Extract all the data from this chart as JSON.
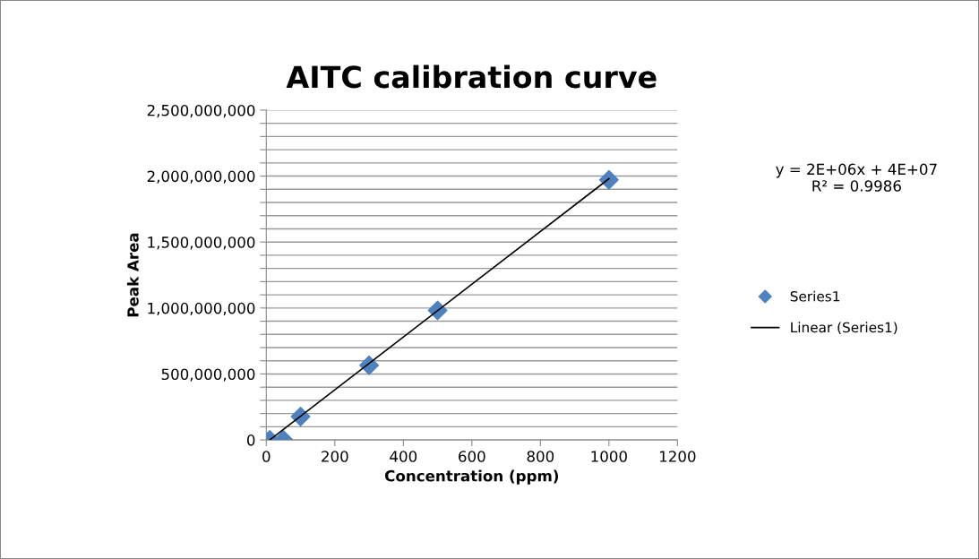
{
  "chart_data": {
    "type": "scatter",
    "title": "AITC calibration curve",
    "xlabel": "Concentration (ppm)",
    "ylabel": "Peak Area",
    "annotations": [
      "y = 2E+06x + 4E+07\nR² = 0.9986"
    ],
    "series": [
      {
        "name": "Series1",
        "color": "#4f81bd",
        "marker": "diamond",
        "x": [
          10,
          50,
          100,
          300,
          500,
          1000
        ],
        "values": [
          0,
          0,
          177000000,
          566000000,
          982000000,
          1971000000
        ]
      },
      {
        "name": "Linear (Series1)",
        "type": "line",
        "color": "#000000",
        "line_style": "solid",
        "marker": "none",
        "x": [
          10,
          1000
        ],
        "values": [
          0,
          1980000000
        ]
      }
    ],
    "xlim": [
      0,
      1200
    ],
    "xticks": [
      0,
      200,
      400,
      600,
      800,
      1000,
      1200
    ],
    "ylim": [
      0,
      2500000000
    ],
    "yticks": [
      {
        "value": 0,
        "label": "0"
      },
      {
        "value": 100000000,
        "label": null
      },
      {
        "value": 200000000,
        "label": null
      },
      {
        "value": 300000000,
        "label": null
      },
      {
        "value": 400000000,
        "label": null
      },
      {
        "value": 500000000,
        "label": "500,000,000"
      },
      {
        "value": 600000000,
        "label": null
      },
      {
        "value": 700000000,
        "label": null
      },
      {
        "value": 800000000,
        "label": null
      },
      {
        "value": 900000000,
        "label": null
      },
      {
        "value": 1000000000,
        "label": "1,000,000,000"
      },
      {
        "value": 1100000000,
        "label": null
      },
      {
        "value": 1200000000,
        "label": null
      },
      {
        "value": 1300000000,
        "label": null
      },
      {
        "value": 1400000000,
        "label": null
      },
      {
        "value": 1500000000,
        "label": "1,500,000,000"
      },
      {
        "value": 1600000000,
        "label": null
      },
      {
        "value": 1700000000,
        "label": null
      },
      {
        "value": 1800000000,
        "label": null
      },
      {
        "value": 1900000000,
        "label": null
      },
      {
        "value": 2000000000,
        "label": "2,000,000,000"
      },
      {
        "value": 2100000000,
        "label": null
      },
      {
        "value": 2200000000,
        "label": null
      },
      {
        "value": 2300000000,
        "label": null
      },
      {
        "value": 2400000000,
        "label": null
      },
      {
        "value": 2500000000,
        "label": "2,500,000,000"
      }
    ],
    "grid": "y",
    "legend": "right"
  }
}
